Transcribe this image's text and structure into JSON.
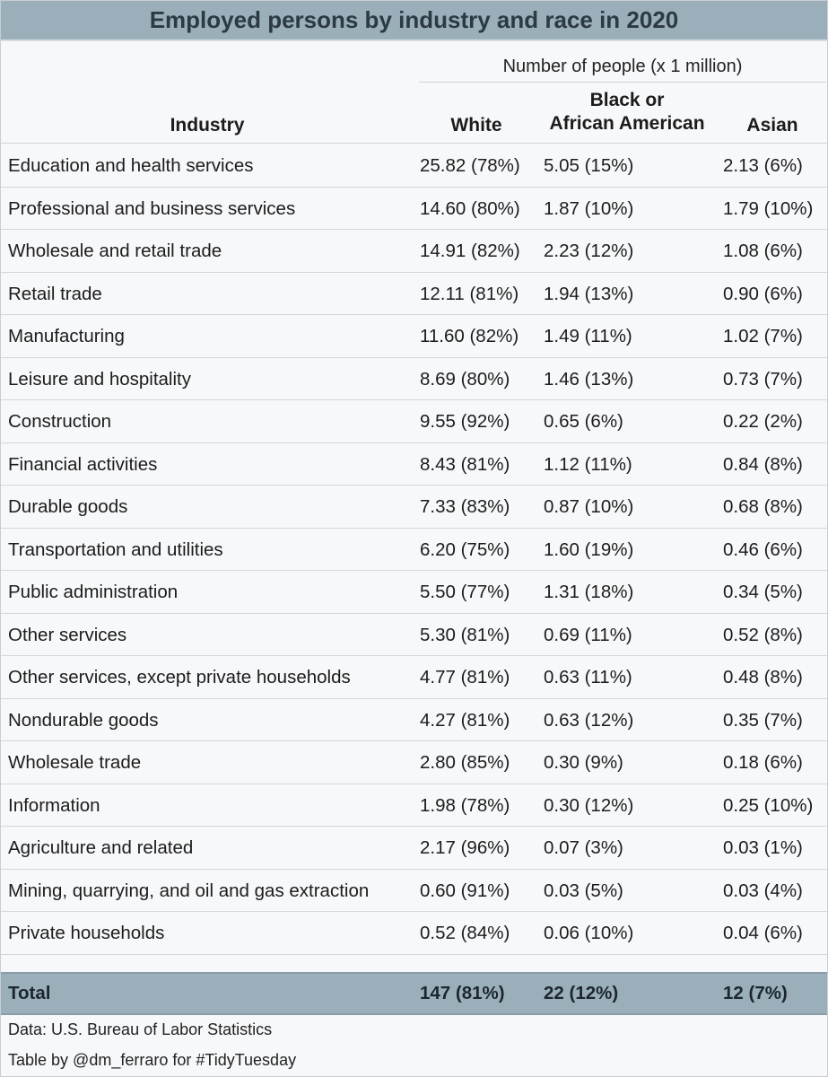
{
  "title": "Employed persons by industry and race in 2020",
  "spanner_label": "Number of people (x 1 million)",
  "columns": {
    "industry": "Industry",
    "white": "White",
    "black_line1": "Black or",
    "black_line2": "African American",
    "asian": "Asian"
  },
  "colors": {
    "header_bg": "#9bafbb",
    "page_bg": "#f7f8fa"
  },
  "chart_data": {
    "type": "table",
    "title": "Employed persons by industry and race in 2020",
    "spanner": "Number of people (x 1 million)",
    "headers": [
      "Industry",
      "White",
      "Black or African American",
      "Asian"
    ],
    "rows": [
      [
        "Education and health services",
        "25.82 (78%)",
        "5.05 (15%)",
        "2.13 (6%)"
      ],
      [
        "Professional and business services",
        "14.60 (80%)",
        "1.87 (10%)",
        "1.79 (10%)"
      ],
      [
        "Wholesale and retail trade",
        "14.91 (82%)",
        "2.23 (12%)",
        "1.08 (6%)"
      ],
      [
        "Retail trade",
        "12.11 (81%)",
        "1.94 (13%)",
        "0.90 (6%)"
      ],
      [
        "Manufacturing",
        "11.60 (82%)",
        "1.49 (11%)",
        "1.02 (7%)"
      ],
      [
        "Leisure and hospitality",
        "8.69 (80%)",
        "1.46 (13%)",
        "0.73 (7%)"
      ],
      [
        "Construction",
        "9.55 (92%)",
        "0.65 (6%)",
        "0.22 (2%)"
      ],
      [
        "Financial activities",
        "8.43 (81%)",
        "1.12 (11%)",
        "0.84 (8%)"
      ],
      [
        "Durable goods",
        "7.33 (83%)",
        "0.87 (10%)",
        "0.68 (8%)"
      ],
      [
        "Transportation and utilities",
        "6.20 (75%)",
        "1.60 (19%)",
        "0.46 (6%)"
      ],
      [
        "Public administration",
        "5.50 (77%)",
        "1.31 (18%)",
        "0.34 (5%)"
      ],
      [
        "Other services",
        "5.30 (81%)",
        "0.69 (11%)",
        "0.52 (8%)"
      ],
      [
        "Other services, except private households",
        "4.77 (81%)",
        "0.63 (11%)",
        "0.48 (8%)"
      ],
      [
        "Nondurable goods",
        "4.27 (81%)",
        "0.63 (12%)",
        "0.35 (7%)"
      ],
      [
        "Wholesale trade",
        "2.80 (85%)",
        "0.30 (9%)",
        "0.18 (6%)"
      ],
      [
        "Information",
        "1.98 (78%)",
        "0.30 (12%)",
        "0.25 (10%)"
      ],
      [
        "Agriculture and related",
        "2.17 (96%)",
        "0.07 (3%)",
        "0.03 (1%)"
      ],
      [
        "Mining, quarrying, and oil and gas extraction",
        "0.60 (91%)",
        "0.03 (5%)",
        "0.03 (4%)"
      ],
      [
        "Private households",
        "0.52 (84%)",
        "0.06 (10%)",
        "0.04 (6%)"
      ]
    ],
    "total": [
      "Total",
      "147 (81%)",
      "22 (12%)",
      "12 (7%)"
    ]
  },
  "footnotes": {
    "source": "Data: U.S. Bureau of Labor Statistics",
    "credit": "Table by @dm_ferraro for #TidyTuesday"
  }
}
